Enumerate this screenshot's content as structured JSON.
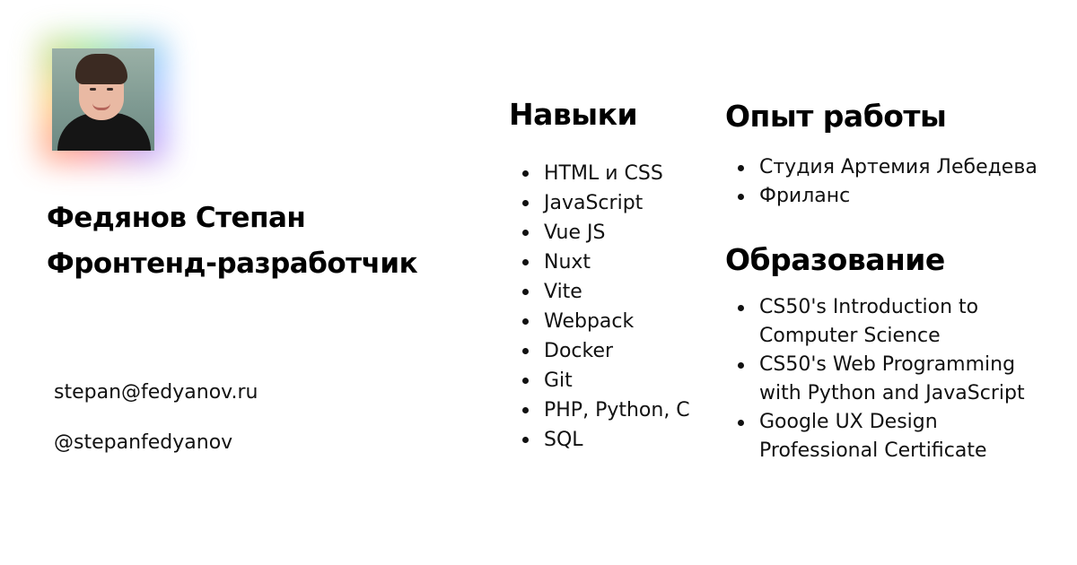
{
  "profile": {
    "name": "Федянов Степан",
    "role": "Фронтенд-разработчик",
    "email": "stepan@fedyanov.ru",
    "handle": "@stepanfedyanov"
  },
  "skills": {
    "title": "Навыки",
    "items": [
      "HTML и CSS",
      "JavaScript",
      "Vue JS",
      "Nuxt",
      "Vite",
      "Webpack",
      "Docker",
      "Git",
      "PHP, Python, C",
      "SQL"
    ]
  },
  "experience": {
    "title": "Опыт работы",
    "items": [
      "Студия Артемия Лебедева",
      "Фриланс"
    ]
  },
  "education": {
    "title": "Образование",
    "items": [
      "CS50's Introduction to Computer Science",
      "CS50's Web Programming with Python and JavaScript",
      "Google UX Design Professional Certificate"
    ]
  }
}
